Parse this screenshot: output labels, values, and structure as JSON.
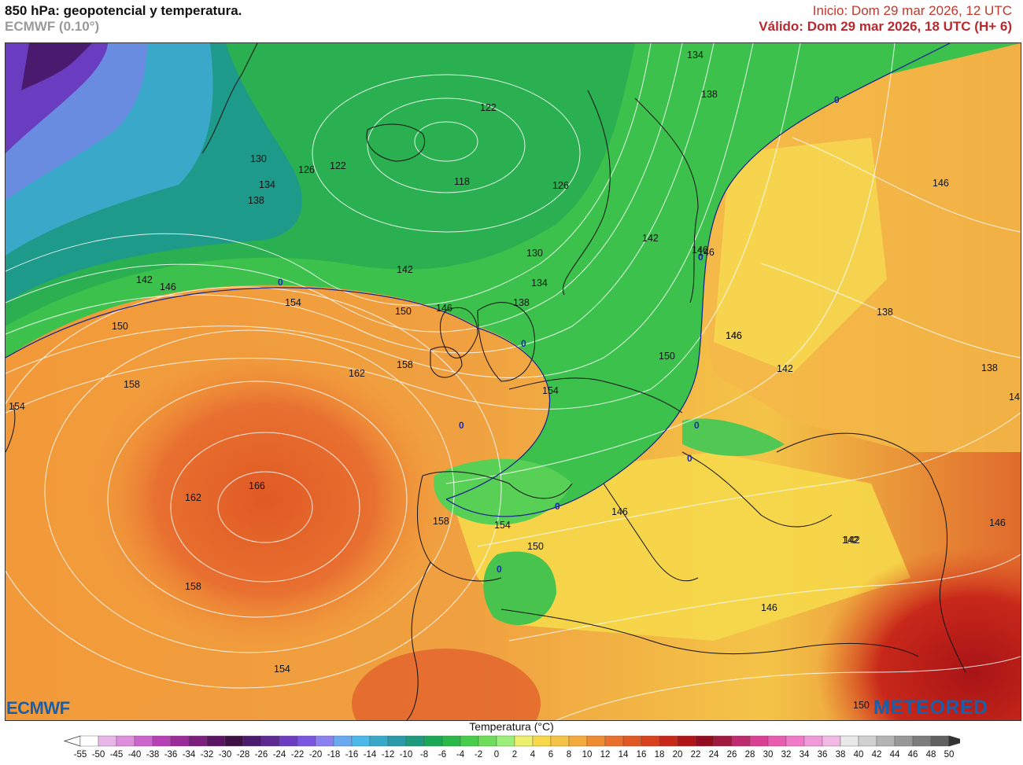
{
  "header": {
    "title": "850 hPa: geopotencial y temperatura.",
    "model": "ECMWF (0.10°)",
    "init": "Inicio: Dom 29 mar 2026, 12 UTC",
    "valid": "Válido: Dom 29 mar 2026, 18 UTC (H+ 6)"
  },
  "logos": {
    "left": "ECMWF",
    "right": "METEORED"
  },
  "legend": {
    "title": "Temperatura (°C)",
    "ticks": [
      "-55",
      "-50",
      "-45",
      "-40",
      "-38",
      "-36",
      "-34",
      "-32",
      "-30",
      "-28",
      "-26",
      "-24",
      "-22",
      "-20",
      "-18",
      "-16",
      "-14",
      "-12",
      "-10",
      "-8",
      "-6",
      "-4",
      "-2",
      "0",
      "2",
      "4",
      "6",
      "8",
      "10",
      "12",
      "14",
      "16",
      "18",
      "20",
      "22",
      "24",
      "26",
      "28",
      "30",
      "32",
      "34",
      "36",
      "38",
      "40",
      "42",
      "44",
      "46",
      "48",
      "50"
    ],
    "colors": [
      "#ffffff",
      "#e8b6e6",
      "#dd8fdc",
      "#cc66cc",
      "#b640b4",
      "#9a2b98",
      "#7a1f7c",
      "#5a1560",
      "#3d0f45",
      "#4a1a6e",
      "#5c2a90",
      "#6a3cc0",
      "#7a55e0",
      "#8a80f0",
      "#6aa8f0",
      "#4ab8e8",
      "#38a8c8",
      "#2a9aa8",
      "#1e9a7e",
      "#1aa858",
      "#2ab848",
      "#48cc4c",
      "#6ede5a",
      "#9cf07a",
      "#ecf06a",
      "#f6d84a",
      "#f6c444",
      "#f4aa3c",
      "#f08c30",
      "#e8702c",
      "#e05824",
      "#d8401e",
      "#c8281a",
      "#b01416",
      "#940c20",
      "#a01a40",
      "#c02a6e",
      "#d84092",
      "#e85cb0",
      "#f07ac8",
      "#f09ad8",
      "#f0b8e2",
      "#e8e8e8",
      "#d0d0d0",
      "#b4b4b4",
      "#989898",
      "#7c7c7c",
      "#606060"
    ]
  },
  "contour_labels": [
    "134",
    "138",
    "122",
    "130",
    "126",
    "122",
    "134",
    "138",
    "118",
    "126",
    "142",
    "130",
    "134",
    "138",
    "142",
    "146",
    "150",
    "146",
    "154",
    "142",
    "146",
    "150",
    "158",
    "162",
    "158",
    "154",
    "166",
    "162",
    "158",
    "154",
    "158",
    "154",
    "150",
    "146",
    "146",
    "142",
    "150",
    "146",
    "146",
    "138",
    "142",
    "138",
    "146",
    "142",
    "146",
    "146",
    "154",
    "150",
    "14"
  ],
  "zero_labels": [
    "0",
    "0",
    "0",
    "0",
    "0",
    "0",
    "0",
    "0",
    "0"
  ]
}
